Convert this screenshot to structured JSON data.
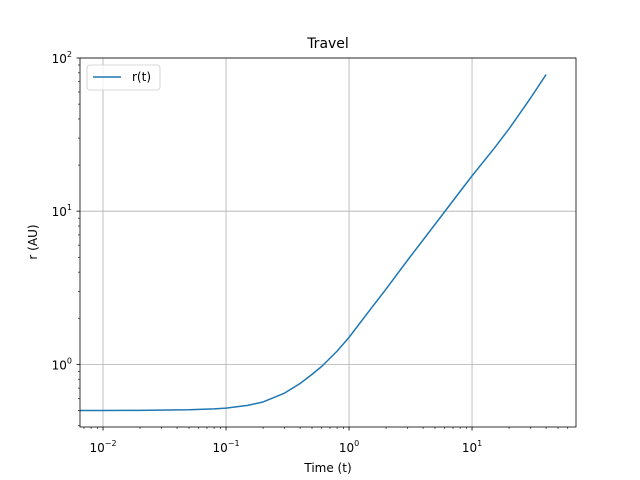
{
  "chart_data": {
    "type": "line",
    "title": "Travel",
    "xlabel": "Time (t)",
    "ylabel": "r (AU)",
    "xscale": "log",
    "yscale": "log",
    "xlim": [
      0.0065,
      70
    ],
    "ylim": [
      0.39,
      100
    ],
    "grid": true,
    "legend_position": "top-left",
    "colors": {
      "series": "#1f77b4",
      "grid": "#b0b0b0",
      "axes": "#000000"
    },
    "xticks": [
      {
        "value": 0.01,
        "base": "10",
        "exp": "−2"
      },
      {
        "value": 0.1,
        "base": "10",
        "exp": "−1"
      },
      {
        "value": 1,
        "base": "10",
        "exp": "0"
      },
      {
        "value": 10,
        "base": "10",
        "exp": "1"
      }
    ],
    "yticks": [
      {
        "value": 1,
        "base": "10",
        "exp": "0"
      },
      {
        "value": 10,
        "base": "10",
        "exp": "1"
      },
      {
        "value": 100,
        "base": "10",
        "exp": "2"
      }
    ],
    "series": [
      {
        "name": "r(t)",
        "x": [
          0.0065,
          0.01,
          0.02,
          0.05,
          0.08,
          0.1,
          0.15,
          0.2,
          0.3,
          0.4,
          0.5,
          0.6,
          0.8,
          1,
          1.5,
          2,
          3,
          5,
          7,
          10,
          15,
          20,
          30,
          40
        ],
        "y": [
          0.5,
          0.5,
          0.501,
          0.505,
          0.512,
          0.518,
          0.54,
          0.568,
          0.65,
          0.75,
          0.86,
          0.97,
          1.22,
          1.5,
          2.3,
          3.1,
          4.8,
          8.2,
          11.7,
          17.0,
          25.5,
          34.5,
          55.0,
          78.0
        ]
      }
    ]
  }
}
